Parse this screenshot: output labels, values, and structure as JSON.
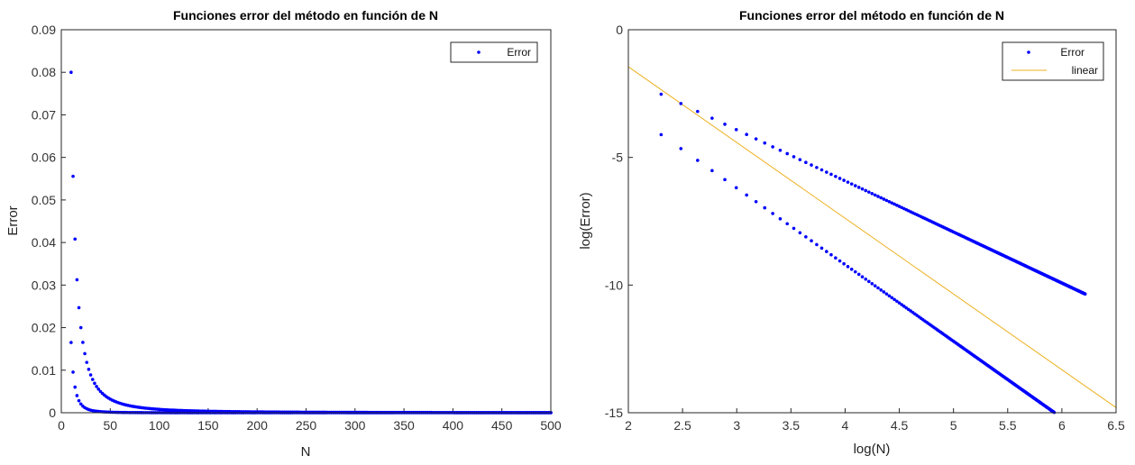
{
  "chart_data": [
    {
      "type": "scatter",
      "title": "Funciones error del método en función de N",
      "xlabel": "N",
      "ylabel": "Error",
      "xlim": [
        0,
        500
      ],
      "ylim": [
        0,
        0.09
      ],
      "xticks": [
        0,
        50,
        100,
        150,
        200,
        250,
        300,
        350,
        400,
        450,
        500
      ],
      "yticks": [
        0,
        0.01,
        0.02,
        0.03,
        0.04,
        0.05,
        0.06,
        0.07,
        0.08,
        0.09
      ],
      "xtick_labels": [
        "0",
        "50",
        "100",
        "150",
        "200",
        "250",
        "300",
        "350",
        "400",
        "450",
        "500"
      ],
      "ytick_labels": [
        "0",
        "0.01",
        "0.02",
        "0.03",
        "0.04",
        "0.05",
        "0.06",
        "0.07",
        "0.08",
        "0.09"
      ],
      "grid": false,
      "legend": {
        "position": "top-right",
        "entries": [
          "Error"
        ]
      },
      "series": [
        {
          "name": "Error",
          "color": "#0000ff",
          "marker": "dot",
          "model": {
            "n_start": 10,
            "n_end": 500,
            "step": 2,
            "upper_coeff": 8.0,
            "upper_exp": -2,
            "lower_coeff": 16.5,
            "lower_exp": -3
          }
        }
      ]
    },
    {
      "type": "scatter",
      "title": "Funciones error del método en función de N",
      "xlabel": "log(N)",
      "ylabel": "log(Error)",
      "xlim": [
        2,
        6.5
      ],
      "ylim": [
        -15,
        0
      ],
      "xticks": [
        2,
        2.5,
        3,
        3.5,
        4,
        4.5,
        5,
        5.5,
        6,
        6.5
      ],
      "yticks": [
        -15,
        -10,
        -5,
        0
      ],
      "xtick_labels": [
        "2",
        "2.5",
        "3",
        "3.5",
        "4",
        "4.5",
        "5",
        "5.5",
        "6",
        "6.5"
      ],
      "ytick_labels": [
        "-15",
        "-10",
        "-5",
        "0"
      ],
      "grid": false,
      "legend": {
        "position": "top-right",
        "entries": [
          "Error",
          "linear"
        ]
      },
      "series": [
        {
          "name": "Error",
          "color": "#0000ff",
          "marker": "dot",
          "model": {
            "n_start": 10,
            "n_end": 500,
            "step": 2,
            "upper_intercept": 2.08,
            "upper_slope": -2,
            "lower_intercept": 2.8,
            "lower_slope": -3
          }
        },
        {
          "name": "linear",
          "color": "#edb120",
          "type": "line",
          "x": [
            2,
            6.5
          ],
          "y": [
            -1.45,
            -14.8
          ]
        }
      ]
    }
  ]
}
